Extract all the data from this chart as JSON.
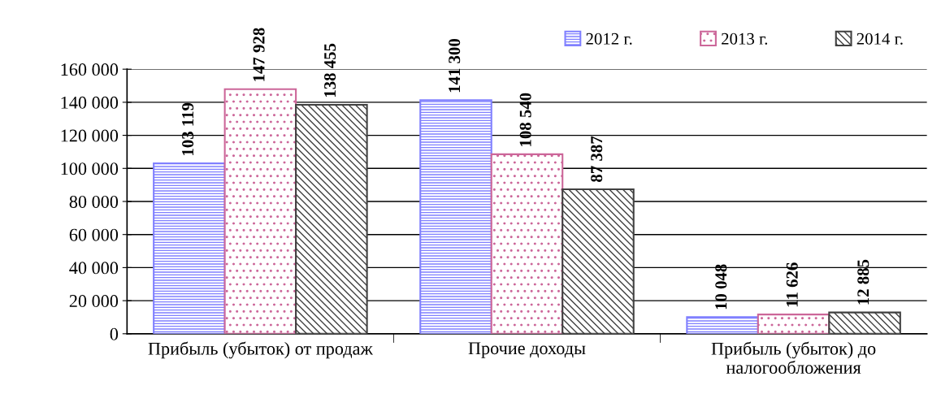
{
  "chart_data": {
    "type": "bar",
    "categories": [
      "Прибыль (убыток) от продаж",
      "Прочие доходы",
      "Прибыль (убыток) до налогообложения"
    ],
    "series": [
      {
        "name": "2012 г.",
        "color": "#8080ff",
        "values": [
          103119,
          141300,
          10048
        ]
      },
      {
        "name": "2013 г.",
        "color": "#cc6699",
        "values": [
          147928,
          108540,
          11626
        ]
      },
      {
        "name": "2014 г.",
        "color": "#404040",
        "values": [
          138455,
          87387,
          12885
        ]
      }
    ],
    "ylim": [
      0,
      160000
    ],
    "yticks": [
      {
        "value": 0,
        "label": "0"
      },
      {
        "value": 20000,
        "label": "20 000"
      },
      {
        "value": 40000,
        "label": "40 000"
      },
      {
        "value": 60000,
        "label": "60 000"
      },
      {
        "value": 80000,
        "label": "80 000"
      },
      {
        "value": 100000,
        "label": "100 000"
      },
      {
        "value": 120000,
        "label": "120 000"
      },
      {
        "value": 140000,
        "label": "140 000"
      },
      {
        "value": 160000,
        "label": "160 000"
      }
    ],
    "grid": "y",
    "legend": "top right",
    "data_labels": true
  }
}
